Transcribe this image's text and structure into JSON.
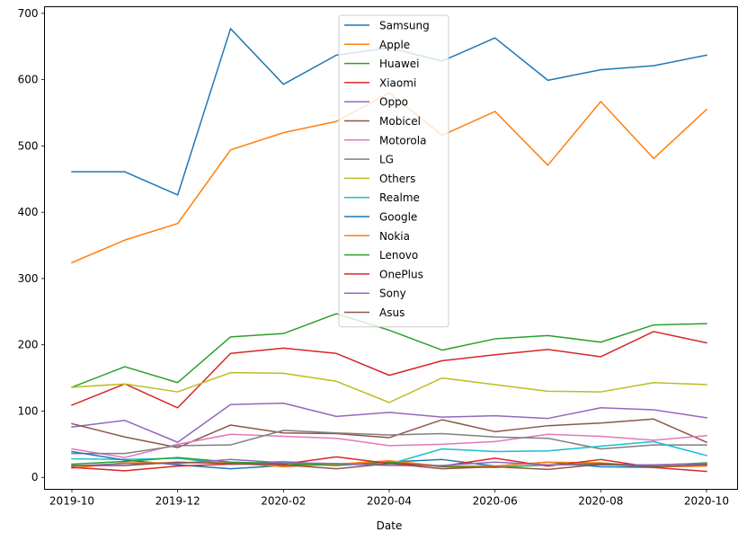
{
  "chart_data": {
    "type": "line",
    "title": "",
    "xlabel": "Date",
    "ylabel": "",
    "x": [
      "2019-10",
      "2019-11",
      "2019-12",
      "2020-01",
      "2020-02",
      "2020-03",
      "2020-04",
      "2020-05",
      "2020-06",
      "2020-07",
      "2020-08",
      "2020-09",
      "2020-10"
    ],
    "xticks": [
      "2019-10",
      "2019-12",
      "2020-02",
      "2020-04",
      "2020-06",
      "2020-08",
      "2020-10"
    ],
    "yticks": [
      0,
      100,
      200,
      300,
      400,
      500,
      600,
      700
    ],
    "ylim": [
      -18,
      710
    ],
    "grid": false,
    "legend_position": "upper center",
    "series": [
      {
        "name": "Samsung",
        "color": "#1f77b4",
        "values": [
          461,
          461,
          426,
          677,
          593,
          637,
          648,
          628,
          663,
          599,
          615,
          621,
          637
        ]
      },
      {
        "name": "Apple",
        "color": "#ff7f0e",
        "values": [
          324,
          358,
          383,
          494,
          520,
          537,
          580,
          516,
          552,
          471,
          567,
          481,
          555
        ]
      },
      {
        "name": "Huawei",
        "color": "#2ca02c",
        "values": [
          136,
          167,
          143,
          212,
          217,
          247,
          222,
          192,
          209,
          214,
          204,
          230,
          232
        ]
      },
      {
        "name": "Xiaomi",
        "color": "#d62728",
        "values": [
          109,
          141,
          105,
          187,
          195,
          187,
          154,
          176,
          185,
          193,
          182,
          220,
          203
        ]
      },
      {
        "name": "Oppo",
        "color": "#9467bd",
        "values": [
          76,
          86,
          53,
          110,
          112,
          92,
          98,
          91,
          93,
          89,
          105,
          102,
          90
        ]
      },
      {
        "name": "Mobicel",
        "color": "#8c564b",
        "values": [
          81,
          61,
          45,
          79,
          67,
          66,
          60,
          87,
          69,
          78,
          82,
          88,
          53
        ]
      },
      {
        "name": "Motorola",
        "color": "#e377c2",
        "values": [
          43,
          30,
          50,
          65,
          62,
          59,
          48,
          50,
          54,
          65,
          62,
          56,
          63
        ]
      },
      {
        "name": "LG",
        "color": "#7f7f7f",
        "values": [
          36,
          36,
          48,
          49,
          71,
          67,
          64,
          66,
          61,
          59,
          43,
          49,
          49
        ]
      },
      {
        "name": "Others",
        "color": "#bcbd22",
        "values": [
          136,
          141,
          129,
          158,
          157,
          145,
          113,
          150,
          140,
          130,
          129,
          143,
          140
        ]
      },
      {
        "name": "Realme",
        "color": "#17becf",
        "values": [
          28,
          27,
          29,
          20,
          24,
          19,
          20,
          43,
          39,
          40,
          47,
          54,
          33
        ]
      },
      {
        "name": "Google",
        "color": "#1f77b4",
        "values": [
          39,
          26,
          19,
          13,
          18,
          20,
          23,
          27,
          17,
          23,
          16,
          15,
          20
        ]
      },
      {
        "name": "Nokia",
        "color": "#ff7f0e",
        "values": [
          14,
          22,
          22,
          22,
          16,
          20,
          25,
          17,
          17,
          23,
          22,
          16,
          17
        ]
      },
      {
        "name": "Lenovo",
        "color": "#2ca02c",
        "values": [
          20,
          24,
          30,
          23,
          21,
          18,
          23,
          16,
          15,
          19,
          21,
          18,
          22
        ]
      },
      {
        "name": "OnePlus",
        "color": "#d62728",
        "values": [
          15,
          10,
          17,
          20,
          20,
          31,
          21,
          17,
          29,
          17,
          27,
          15,
          9
        ]
      },
      {
        "name": "Sony",
        "color": "#9467bd",
        "values": [
          17,
          21,
          21,
          27,
          22,
          21,
          18,
          18,
          23,
          19,
          19,
          19,
          21
        ]
      },
      {
        "name": "Asus",
        "color": "#8c564b",
        "values": [
          18,
          18,
          23,
          21,
          19,
          13,
          21,
          13,
          16,
          12,
          20,
          16,
          19
        ]
      }
    ]
  }
}
